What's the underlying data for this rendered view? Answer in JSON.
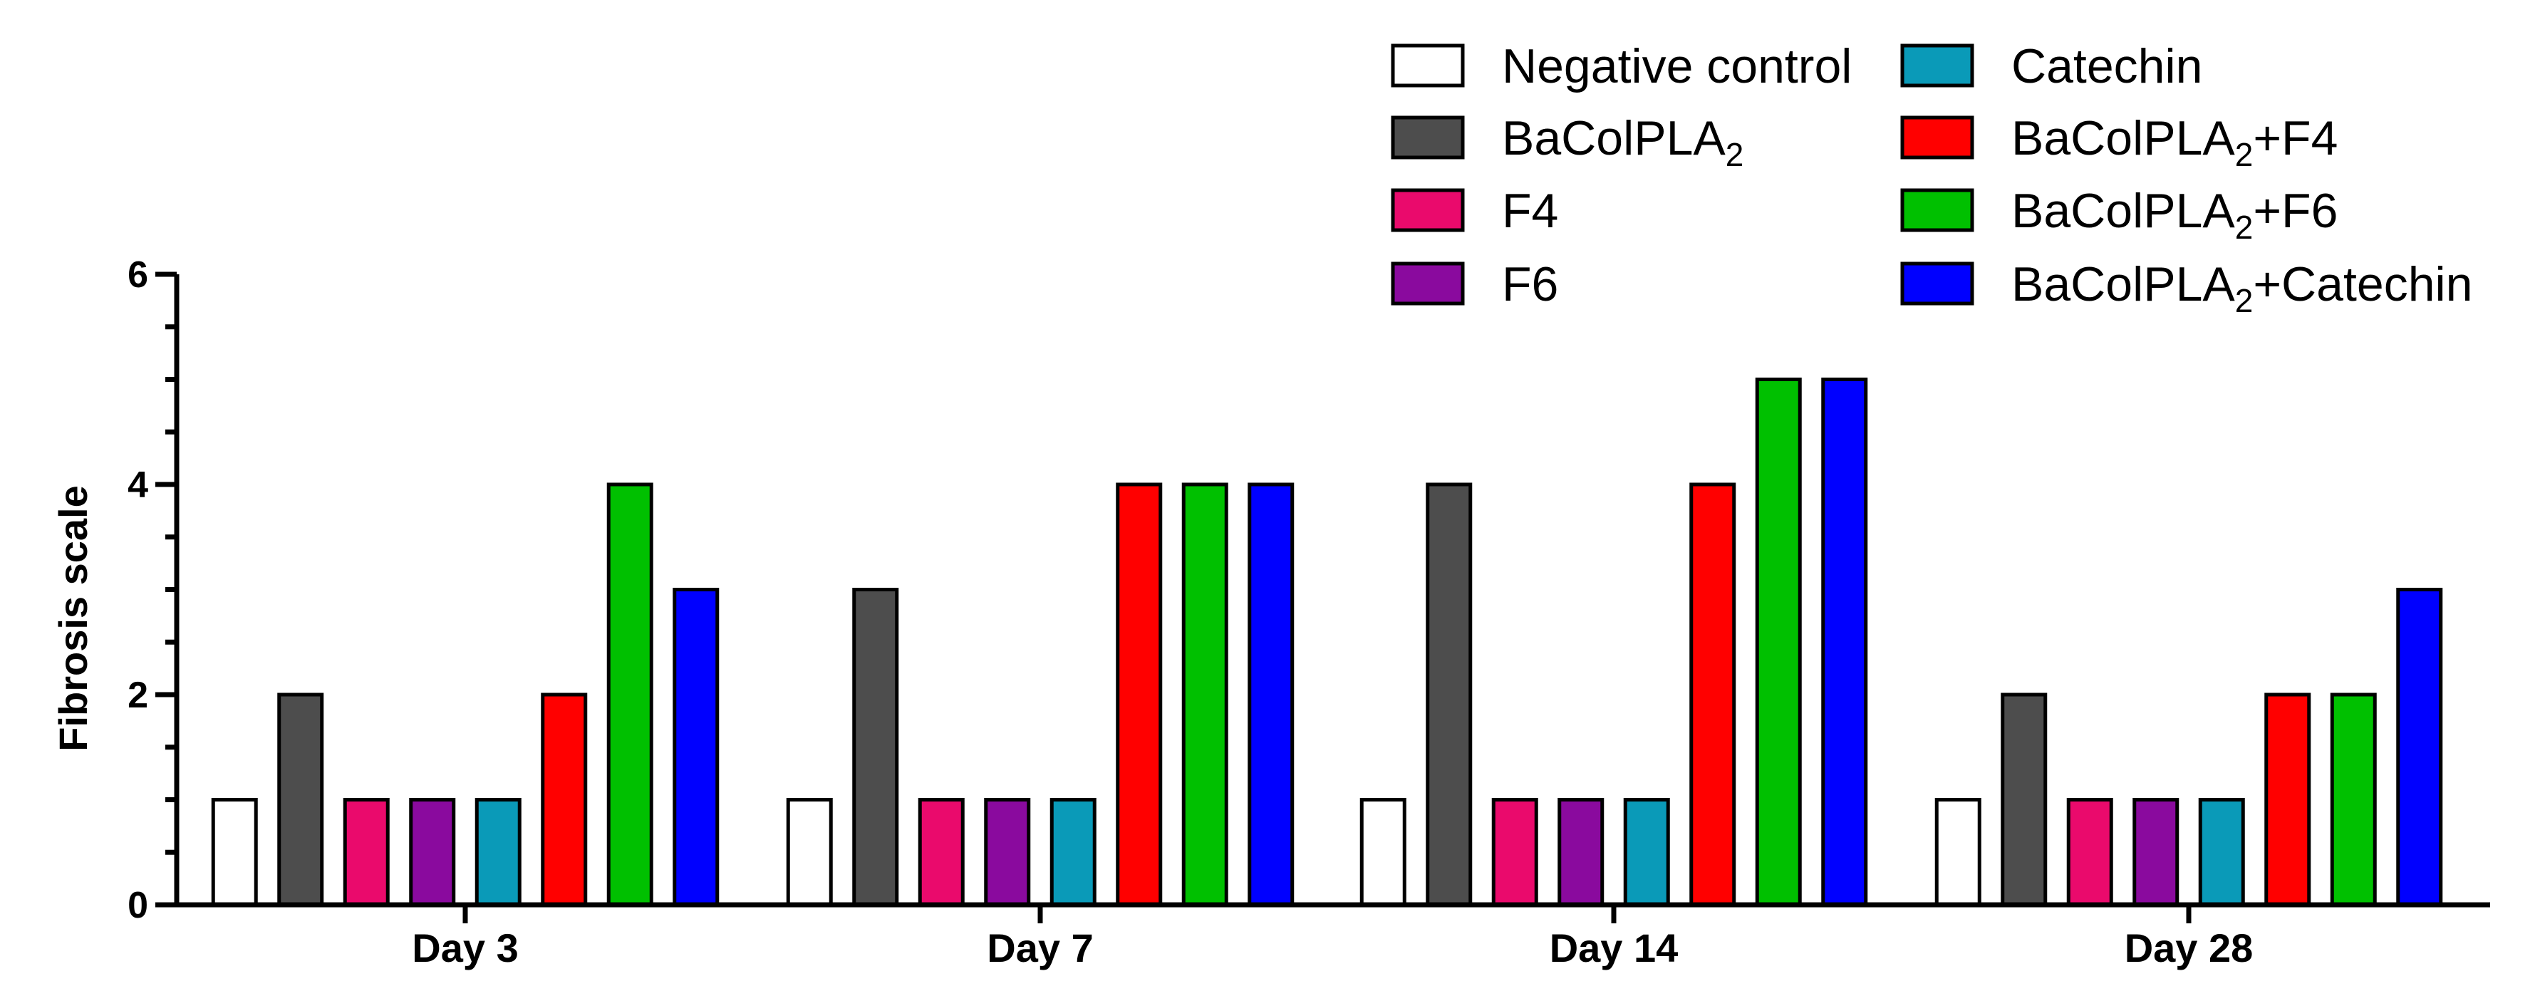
{
  "chart_data": {
    "type": "bar",
    "title": "",
    "xlabel": "",
    "ylabel": "Fibrosis scale",
    "ylim": [
      0,
      6
    ],
    "y_major_ticks": [
      0,
      2,
      4,
      6
    ],
    "y_minor_step": 0.5,
    "y_tick_labels": [
      "0",
      "2",
      "4",
      "6"
    ],
    "categories": [
      "Day 3",
      "Day 7",
      "Day 14",
      "Day 28"
    ],
    "legend_position": "top-right",
    "series": [
      {
        "name": "Negative control",
        "color": "#ffffff",
        "values": [
          1,
          1,
          1,
          1
        ]
      },
      {
        "name": "BaColPLA2",
        "base": "BaColPLA",
        "sub": "2",
        "suffix": "",
        "color": "#4d4d4d",
        "values": [
          2,
          3,
          4,
          2
        ]
      },
      {
        "name": "F4",
        "color": "#ea0a6c",
        "values": [
          1,
          1,
          1,
          1
        ]
      },
      {
        "name": "F6",
        "color": "#8a0a9e",
        "values": [
          1,
          1,
          1,
          1
        ]
      },
      {
        "name": "Catechin",
        "color": "#0a9ab8",
        "values": [
          1,
          1,
          1,
          1
        ]
      },
      {
        "name": "BaColPLA2+F4",
        "base": "BaColPLA",
        "sub": "2",
        "suffix": "+F4",
        "color": "#ff0000",
        "values": [
          2,
          4,
          4,
          2
        ]
      },
      {
        "name": "BaColPLA2+F6",
        "base": "BaColPLA",
        "sub": "2",
        "suffix": "+F6",
        "color": "#00c000",
        "values": [
          4,
          4,
          5,
          2
        ]
      },
      {
        "name": "BaColPLA2+Catechin",
        "base": "BaColPLA",
        "sub": "2",
        "suffix": "+Catechin",
        "color": "#0000ff",
        "values": [
          3,
          4,
          5,
          3
        ]
      }
    ]
  }
}
